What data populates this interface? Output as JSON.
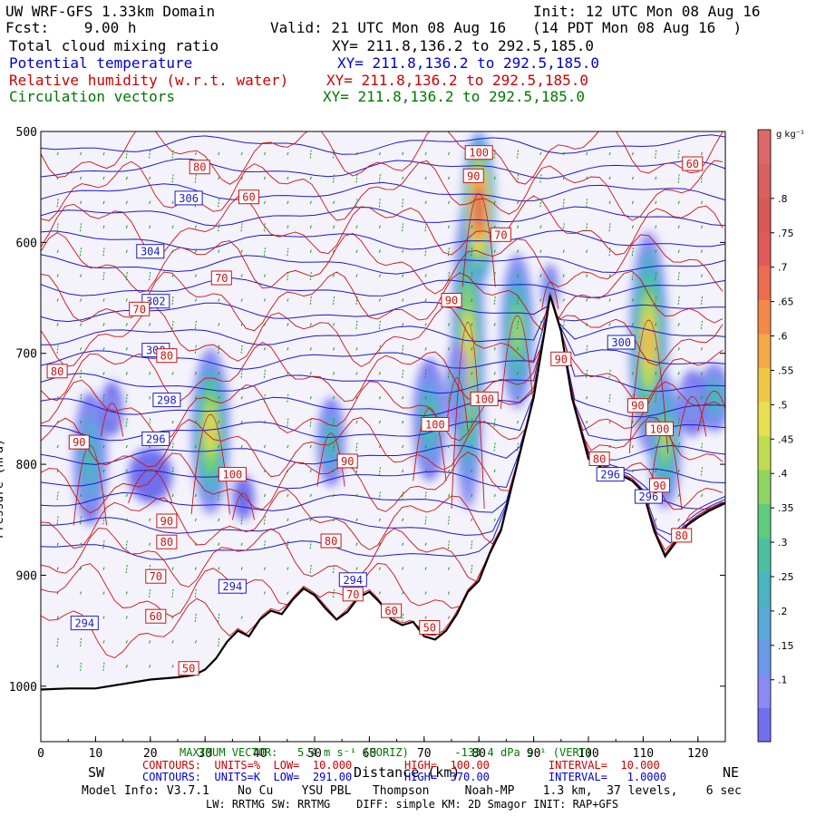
{
  "header": {
    "line1_left": "UW WRF-GFS 1.33km Domain",
    "line1_right": "Init: 12 UTC Mon 08 Aug 16",
    "line2_left": "Fcst:    9.00 h",
    "line2_right": "Valid: 21 UTC Mon 08 Aug 16   (14 PDT Mon 08 Aug 16  )",
    "fields": [
      {
        "name": "Total cloud mixing ratio",
        "xy": "XY= 211.8,136.2 to 292.5,185.0",
        "color": "#000000"
      },
      {
        "name": "Potential temperature",
        "xy": "XY= 211.8,136.2 to 292.5,185.0",
        "color": "#0000cc"
      },
      {
        "name": "Relative humidity (w.r.t. water)",
        "xy": "XY= 211.8,136.2 to 292.5,185.0",
        "color": "#cc0000"
      },
      {
        "name": "Circulation vectors",
        "xy": "XY= 211.8,136.2 to 292.5,185.0",
        "color": "#007700"
      }
    ]
  },
  "chart_data": {
    "type": "cross-section",
    "xlabel": "Distance (km)",
    "ylabel": "Pressure (hPa)",
    "xlim": [
      0,
      125
    ],
    "ylim": [
      1050,
      500
    ],
    "x_ticks": [
      "0",
      "10",
      "20",
      "30",
      "40",
      "50",
      "60",
      "70",
      "80",
      "90",
      "100",
      "110",
      "120"
    ],
    "y_ticks": [
      "500",
      "600",
      "700",
      "800",
      "900",
      "1000"
    ],
    "y_tick_values": [
      500,
      600,
      700,
      800,
      900,
      1000
    ],
    "left_end_label": "SW",
    "right_end_label": "NE",
    "terrain_pressure": [
      [
        0,
        1003
      ],
      [
        5,
        1002
      ],
      [
        10,
        1002
      ],
      [
        15,
        998
      ],
      [
        20,
        994
      ],
      [
        25,
        992
      ],
      [
        28,
        990
      ],
      [
        30,
        985
      ],
      [
        32,
        975
      ],
      [
        34,
        960
      ],
      [
        36,
        950
      ],
      [
        38,
        955
      ],
      [
        40,
        940
      ],
      [
        42,
        932
      ],
      [
        44,
        935
      ],
      [
        46,
        922
      ],
      [
        48,
        912
      ],
      [
        50,
        918
      ],
      [
        52,
        930
      ],
      [
        54,
        940
      ],
      [
        56,
        933
      ],
      [
        58,
        920
      ],
      [
        60,
        915
      ],
      [
        62,
        925
      ],
      [
        64,
        940
      ],
      [
        66,
        945
      ],
      [
        68,
        942
      ],
      [
        70,
        955
      ],
      [
        72,
        958
      ],
      [
        74,
        950
      ],
      [
        76,
        935
      ],
      [
        78,
        915
      ],
      [
        80,
        905
      ],
      [
        82,
        880
      ],
      [
        84,
        860
      ],
      [
        86,
        820
      ],
      [
        88,
        780
      ],
      [
        90,
        740
      ],
      [
        92,
        680
      ],
      [
        93,
        648
      ],
      [
        95,
        680
      ],
      [
        97,
        740
      ],
      [
        100,
        795
      ],
      [
        103,
        805
      ],
      [
        106,
        810
      ],
      [
        108,
        815
      ],
      [
        110,
        825
      ],
      [
        112,
        860
      ],
      [
        114,
        883
      ],
      [
        116,
        870
      ],
      [
        118,
        855
      ],
      [
        120,
        848
      ],
      [
        122,
        842
      ],
      [
        125,
        835
      ]
    ],
    "theta_contours": {
      "units": "K",
      "low": 291,
      "high": 370,
      "interval": 1,
      "labels": [
        {
          "text": "306",
          "x": 27,
          "p": 560
        },
        {
          "text": "304",
          "x": 20,
          "p": 608
        },
        {
          "text": "302",
          "x": 21,
          "p": 653
        },
        {
          "text": "300",
          "x": 21,
          "p": 697
        },
        {
          "text": "298",
          "x": 23,
          "p": 742
        },
        {
          "text": "296",
          "x": 21,
          "p": 777
        },
        {
          "text": "294",
          "x": 35,
          "p": 910
        },
        {
          "text": "294",
          "x": 57,
          "p": 904
        },
        {
          "text": "294",
          "x": 8,
          "p": 943
        },
        {
          "text": "300",
          "x": 106,
          "p": 690
        },
        {
          "text": "296",
          "x": 104,
          "p": 809
        },
        {
          "text": "296",
          "x": 111,
          "p": 829
        }
      ]
    },
    "rh_contours": {
      "units": "%",
      "low": 10,
      "high": 100,
      "interval": 10,
      "labels": [
        {
          "text": "80",
          "x": 29,
          "p": 532
        },
        {
          "text": "60",
          "x": 38,
          "p": 559
        },
        {
          "text": "70",
          "x": 33,
          "p": 632
        },
        {
          "text": "70",
          "x": 18,
          "p": 660
        },
        {
          "text": "80",
          "x": 23,
          "p": 702
        },
        {
          "text": "80",
          "x": 3,
          "p": 716
        },
        {
          "text": "90",
          "x": 7,
          "p": 780
        },
        {
          "text": "100",
          "x": 35,
          "p": 809
        },
        {
          "text": "90",
          "x": 23,
          "p": 851
        },
        {
          "text": "80",
          "x": 23,
          "p": 870
        },
        {
          "text": "70",
          "x": 21,
          "p": 901
        },
        {
          "text": "60",
          "x": 21,
          "p": 937
        },
        {
          "text": "50",
          "x": 27,
          "p": 984
        },
        {
          "text": "80",
          "x": 53,
          "p": 869
        },
        {
          "text": "70",
          "x": 57,
          "p": 917
        },
        {
          "text": "60",
          "x": 64,
          "p": 932
        },
        {
          "text": "50",
          "x": 71,
          "p": 947
        },
        {
          "text": "90",
          "x": 56,
          "p": 797
        },
        {
          "text": "100",
          "x": 72,
          "p": 764
        },
        {
          "text": "100",
          "x": 81,
          "p": 741
        },
        {
          "text": "90",
          "x": 75,
          "p": 652
        },
        {
          "text": "90",
          "x": 79,
          "p": 540
        },
        {
          "text": "100",
          "x": 80,
          "p": 519
        },
        {
          "text": "70",
          "x": 84,
          "p": 593
        },
        {
          "text": "90",
          "x": 95,
          "p": 705
        },
        {
          "text": "90",
          "x": 109,
          "p": 747
        },
        {
          "text": "100",
          "x": 113,
          "p": 768
        },
        {
          "text": "80",
          "x": 102,
          "p": 795
        },
        {
          "text": "60",
          "x": 119,
          "p": 529
        },
        {
          "text": "90",
          "x": 113,
          "p": 819
        },
        {
          "text": "80",
          "x": 117,
          "p": 864
        }
      ]
    },
    "cloud_blobs": [
      {
        "x": 9,
        "p": 795,
        "rx": 3,
        "rp": 60,
        "peak": 0.28
      },
      {
        "x": 13,
        "p": 750,
        "rx": 2,
        "rp": 25,
        "peak": 0.12
      },
      {
        "x": 20,
        "p": 810,
        "rx": 4,
        "rp": 25,
        "peak": 0.05
      },
      {
        "x": 31,
        "p": 770,
        "rx": 3.5,
        "rp": 75,
        "peak": 0.55
      },
      {
        "x": 37,
        "p": 830,
        "rx": 2,
        "rp": 20,
        "peak": 0.05
      },
      {
        "x": 53,
        "p": 780,
        "rx": 2.5,
        "rp": 40,
        "peak": 0.3
      },
      {
        "x": 71,
        "p": 760,
        "rx": 3,
        "rp": 55,
        "peak": 0.35
      },
      {
        "x": 78,
        "p": 700,
        "rx": 3,
        "rp": 140,
        "peak": 0.55
      },
      {
        "x": 80,
        "p": 570,
        "rx": 3,
        "rp": 70,
        "peak": 0.85
      },
      {
        "x": 76,
        "p": 730,
        "rx": 2,
        "rp": 40,
        "peak": 0.25
      },
      {
        "x": 87,
        "p": 680,
        "rx": 3,
        "rp": 70,
        "peak": 0.45
      },
      {
        "x": 93,
        "p": 640,
        "rx": 1.5,
        "rp": 20,
        "peak": 0.2
      },
      {
        "x": 111,
        "p": 690,
        "rx": 3.5,
        "rp": 100,
        "peak": 0.6
      },
      {
        "x": 114,
        "p": 780,
        "rx": 3,
        "rp": 60,
        "peak": 0.45
      },
      {
        "x": 123,
        "p": 740,
        "rx": 3,
        "rp": 30,
        "peak": 0.3
      },
      {
        "x": 119,
        "p": 745,
        "rx": 2.5,
        "rp": 30,
        "peak": 0.18
      }
    ],
    "colorbar": {
      "units_label": "g kg⁻¹",
      "ticks": [
        ".1",
        ".15",
        ".2",
        ".25",
        ".3",
        ".35",
        ".4",
        ".45",
        ".5",
        ".55",
        ".6",
        ".65",
        ".7",
        ".75",
        ".8"
      ],
      "tick_values": [
        0.1,
        0.15,
        0.2,
        0.25,
        0.3,
        0.35,
        0.4,
        0.45,
        0.5,
        0.55,
        0.6,
        0.65,
        0.7,
        0.75,
        0.8
      ],
      "range": [
        0.01,
        0.9
      ],
      "colors": [
        "#7070ee",
        "#8a8af2",
        "#6a9ae8",
        "#5aa8d8",
        "#4ab4c0",
        "#4ac0a0",
        "#60cc80",
        "#90d460",
        "#c0dc50",
        "#e8e050",
        "#f0c848",
        "#f4a848",
        "#f48848",
        "#ec6c50",
        "#e05a5a",
        "#d85858",
        "#d86060",
        "#dc6868"
      ]
    }
  },
  "footer": {
    "max_vector": "MAXIMUM VECTOR:   5.4 m s⁻¹ (HORIZ)       -133.4 dPa s⁻¹ (VERT)",
    "rh_contours_line": "CONTOURS:  UNITS=%  LOW=  10.000        HIGH=  100.00         INTERVAL=  10.000",
    "theta_contours_line": "CONTOURS:  UNITS=K  LOW=  291.00        HIGH=  370.00         INTERVAL=   1.0000",
    "model_info": "Model Info: V3.7.1    No Cu    YSU PBL   Thompson     Noah-MP    1.3 km,  37 levels,    6 sec",
    "physics": "LW: RRTMG SW: RRTMG    DIFF: simple KM: 2D Smagor INIT: RAP+GFS"
  }
}
